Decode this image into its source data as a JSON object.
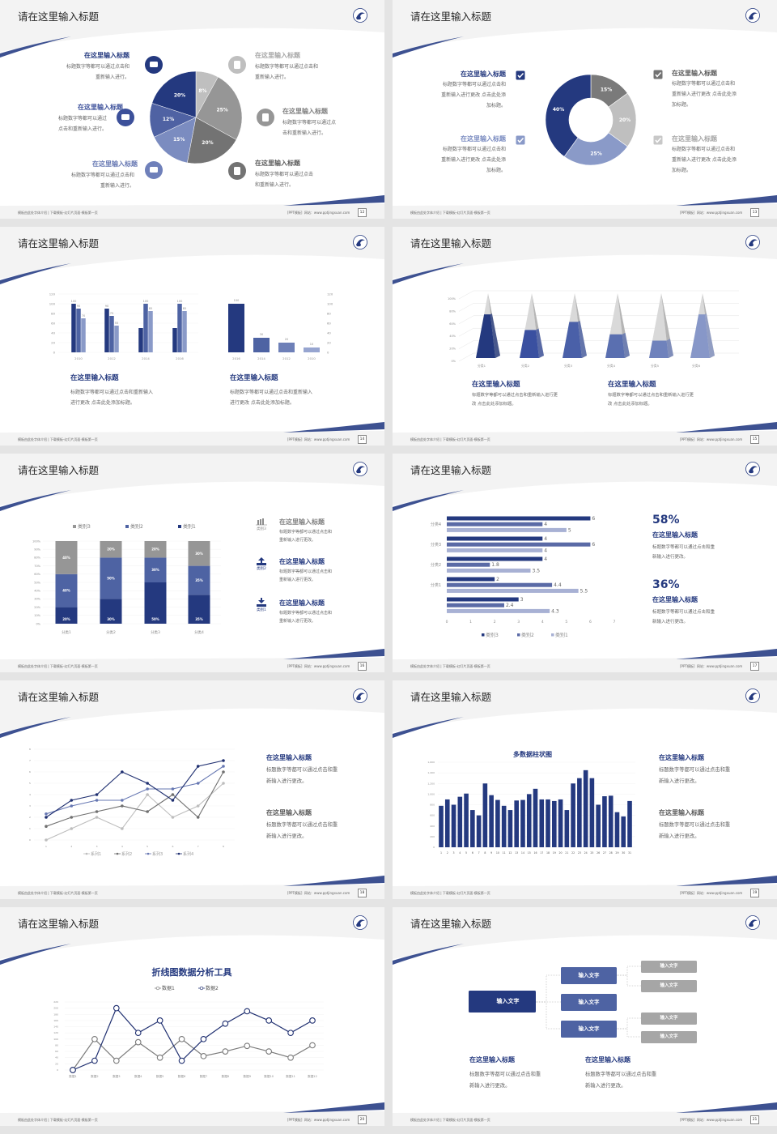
{
  "slide_title": "请在这里输入标题",
  "heading": "在这里输入标题",
  "footer": {
    "left": "模板由此处字体介绍 | 下载模板-幻灯片页面-模板第一页",
    "right": "[PPT模板]  网站：www.pptjingxuan.com"
  },
  "colors": {
    "navy": "#24397f",
    "blue": "#4e63a3",
    "light_blue": "#8a9ac8",
    "gray": "#969696",
    "light_gray": "#bfbfbf"
  },
  "slides": [
    {
      "page": "12",
      "left_items": [
        {
          "title": "在这里输入标题",
          "desc": "标题数字等都可以通过点击和\n重新输入进行。",
          "icon": "monitor-icon"
        },
        {
          "title": "在这里输入标题",
          "desc": "标题数字等都可以通过\n点击和重新输入进行。",
          "icon": "car-icon"
        },
        {
          "title": "在这里输入标题",
          "desc": "标题数字等都可以通过点击和\n重新输入进行。",
          "icon": "book-icon"
        }
      ],
      "right_items": [
        {
          "title": "在这里输入标题",
          "desc": "标题数字等都可以通过点击和\n重新输入进行。",
          "icon": "phone-icon"
        },
        {
          "title": "在这里输入标题",
          "desc": "标题数字等都可以通过点\n击和重新输入进行。",
          "icon": "binoculars-icon"
        },
        {
          "title": "在这里输入标题",
          "desc": "标题数字等都可以通过点击\n和重新输入进行。",
          "icon": "bicycle-icon"
        }
      ]
    },
    {
      "page": "13",
      "left_items": [
        {
          "title": "在这里输入标题",
          "desc": "标题数字等都可以通过点击和\n重新输入进行更改 点击此处添\n加标题。"
        },
        {
          "title": "在这里输入标题",
          "desc": "标题数字等都可以通过点击和\n重新输入进行更改 点击此处添\n加标题。"
        }
      ],
      "right_items": [
        {
          "title": "在这里输入标题",
          "desc": "标题数字等都可以通过点击和\n重新输入进行更改 点击此处添\n加标题。"
        },
        {
          "title": "在这里输入标题",
          "desc": "标题数字等都可以通过点击和\n重新输入进行更改 点击此处添\n加标题。"
        }
      ]
    },
    {
      "page": "14",
      "items": [
        {
          "title": "在这里输入标题",
          "desc": "标题数字等都可以通过点击和重新输入\n进行更改 点击此处添加标题。"
        },
        {
          "title": "在这里输入标题",
          "desc": "标题数字等都可以通过点击和重新输入\n进行更改 点击此处添加标题。"
        }
      ]
    },
    {
      "page": "15",
      "items": [
        {
          "title": "在这里输入标题",
          "desc": "标题数字等都可以通过点击和重新输入进行更\n改 点击此处添加标题。"
        },
        {
          "title": "在这里输入标题",
          "desc": "标题数字等都可以通过点击和重新输入进行更\n改 点击此处添加标题。"
        }
      ]
    },
    {
      "page": "16",
      "items": [
        {
          "label": "类别3",
          "icon": "bar-chart-icon",
          "title": "在这里输入标题",
          "desc": "标题数字等都可以通过点击和\n重新输入进行更改。"
        },
        {
          "label": "类别2",
          "icon": "upload-icon",
          "title": "在这里输入标题",
          "desc": "标题数字等都可以通过点击和\n重新输入进行更改。"
        },
        {
          "label": "类别1",
          "icon": "download-icon",
          "title": "在这里输入标题",
          "desc": "标题数字等都可以通过点击和\n重新输入进行更改。"
        }
      ]
    },
    {
      "page": "17",
      "items": [
        {
          "stat": "58%",
          "title": "在这里输入标题",
          "desc": "标题数字等都可以通过点击和重\n新输入进行更改。"
        },
        {
          "stat": "36%",
          "title": "在这里输入标题",
          "desc": "标题数字等都可以通过点击和重\n新输入进行更改。"
        }
      ]
    },
    {
      "page": "18",
      "items": [
        {
          "title": "在这里输入标题",
          "desc": "标题数字等都可以通过点击和重\n新输入进行更改。"
        },
        {
          "title": "在这里输入标题",
          "desc": "标题数字等都可以通过点击和重\n新输入进行更改。"
        }
      ]
    },
    {
      "page": "19",
      "items": [
        {
          "title": "在这里输入标题",
          "desc": "标题数字等都可以通过点击和重\n新输入进行更改。"
        },
        {
          "title": "在这里输入标题",
          "desc": "标题数字等都可以通过点击和重\n新输入进行更改。"
        }
      ]
    },
    {
      "page": "20"
    },
    {
      "page": "21",
      "flow": {
        "root": "输入文字",
        "middle": [
          "输入文字",
          "输入文字",
          "输入文字"
        ],
        "leaves": [
          "输入文字",
          "输入文字",
          "输入文字",
          "输入文字"
        ]
      },
      "items": [
        {
          "title": "在这里输入标题",
          "desc": "标题数字等都可以通过点击和重\n新输入进行更改。"
        },
        {
          "title": "在这里输入标题",
          "desc": "标题数字等都可以通过点击和重\n新输入进行更改。"
        }
      ]
    }
  ],
  "chart_data": [
    {
      "slide": 1,
      "type": "pie",
      "values": [
        8,
        25,
        20,
        15,
        12,
        20
      ],
      "labels": [
        "8%",
        "25%",
        "20%",
        "15%",
        "12%",
        "20%"
      ],
      "colors": [
        "#bfbfbf",
        "#969696",
        "#737373",
        "#7b8cc0",
        "#4f62a3",
        "#24397f"
      ]
    },
    {
      "slide": 2,
      "type": "pie",
      "donut": true,
      "values": [
        15,
        20,
        25,
        40
      ],
      "labels": [
        "15%",
        "20%",
        "25%",
        "40%"
      ],
      "colors": [
        "#7a7a7a",
        "#bfbfbf",
        "#8a9ac8",
        "#24397f"
      ]
    },
    {
      "slide": 3,
      "type": "bar",
      "categories": [
        "2010",
        "2012",
        "2014",
        "2016"
      ],
      "ylim": [
        0,
        120
      ],
      "yticks": [
        "0",
        "20",
        "40",
        "60",
        "80",
        "100",
        "120"
      ],
      "series": [
        {
          "values": [
            100,
            90,
            50,
            50
          ],
          "data_labels": [
            "100",
            "90",
            "",
            ""
          ],
          "color": "#24397f"
        },
        {
          "values": [
            90,
            75,
            100,
            100
          ],
          "data_labels": [
            "90",
            "75",
            "100",
            "100"
          ],
          "color": "#4e63a3"
        },
        {
          "values": [
            70,
            55,
            85,
            85
          ],
          "data_labels": [
            "70",
            "55",
            "85",
            "85"
          ],
          "color": "#8a9ac8"
        }
      ]
    },
    {
      "slide": 3,
      "type": "bar",
      "categories": [
        "2016",
        "2014",
        "2012",
        "2010"
      ],
      "ylim": [
        0,
        120
      ],
      "yticks": [
        "0",
        "20",
        "40",
        "60",
        "80",
        "100",
        "120"
      ],
      "values": [
        100,
        30,
        20,
        10
      ],
      "data_labels": [
        "100",
        "30",
        "20",
        "10"
      ],
      "colors": [
        "#24397f",
        "#4e63a3",
        "#6e80b8",
        "#97a5d0"
      ]
    },
    {
      "slide": 4,
      "type": "bar",
      "style": "3d-pyramid",
      "categories": [
        "分类1",
        "分类2",
        "分类3",
        "分类4",
        "分类5",
        "分类6"
      ],
      "ylim": [
        0,
        100
      ],
      "yticks": [
        "0%",
        "20%",
        "40%",
        "60%",
        "80%",
        "100%"
      ],
      "values": [
        70,
        45,
        58,
        38,
        28,
        70
      ],
      "colors": [
        "#24397f",
        "#3a50a0",
        "#4a60a8",
        "#5a6fb0",
        "#6f82bc",
        "#8797c8"
      ]
    },
    {
      "slide": 5,
      "type": "bar",
      "stacked": true,
      "categories": [
        "分类1",
        "分类2",
        "分类3",
        "分类4"
      ],
      "ylim": [
        0,
        100
      ],
      "yticks": [
        "0%",
        "10%",
        "20%",
        "30%",
        "40%",
        "50%",
        "60%",
        "70%",
        "80%",
        "90%",
        "100%"
      ],
      "legend": "top",
      "series": [
        {
          "name": "类别1",
          "values": [
            20,
            30,
            50,
            35
          ],
          "labels": [
            "20%",
            "30%",
            "50%",
            "35%"
          ],
          "color": "#24397f"
        },
        {
          "name": "类别2",
          "values": [
            40,
            50,
            30,
            35
          ],
          "labels": [
            "40%",
            "50%",
            "30%",
            "35%"
          ],
          "color": "#4e63a3"
        },
        {
          "name": "类别3",
          "values": [
            40,
            20,
            20,
            30
          ],
          "labels": [
            "40%",
            "20%",
            "20%",
            "30%"
          ],
          "color": "#969696"
        }
      ]
    },
    {
      "slide": 6,
      "type": "bar",
      "orientation": "horizontal",
      "categories": [
        "分类4",
        "分类3",
        "分类2",
        "分类1",
        ""
      ],
      "xlim": [
        0,
        7
      ],
      "xticks": [
        "0",
        "1",
        "2",
        "3",
        "4",
        "5",
        "6",
        "7"
      ],
      "legend": "bottom",
      "series": [
        {
          "name": "类别3",
          "values": [
            6,
            4,
            4,
            2,
            3
          ],
          "color": "#24397f"
        },
        {
          "name": "类别2",
          "values": [
            4,
            6,
            1.8,
            4.4,
            2.4
          ],
          "color": "#5a6aa6"
        },
        {
          "name": "类别1",
          "values": [
            5,
            4,
            3.5,
            5.5,
            4.3
          ],
          "color": "#a8b1d4"
        }
      ]
    },
    {
      "slide": 7,
      "type": "line",
      "x": [
        "1",
        "2",
        "3",
        "4",
        "5",
        "6",
        "7",
        "8"
      ],
      "ylim": [
        0,
        8
      ],
      "yticks": [
        "0",
        "1",
        "2",
        "3",
        "4",
        "5",
        "6",
        "7",
        "8"
      ],
      "legend": "bottom",
      "series": [
        {
          "name": "系列1",
          "values": [
            0,
            1,
            2,
            1,
            4,
            2,
            3,
            5
          ],
          "color": "#bdbdbd"
        },
        {
          "name": "系列2",
          "values": [
            1.2,
            2,
            2.5,
            3,
            2.5,
            4,
            2,
            6
          ],
          "color": "#707070"
        },
        {
          "name": "系列3",
          "values": [
            2.3,
            3,
            3.5,
            3.5,
            4.5,
            4.5,
            5,
            6.5
          ],
          "color": "#6677b2"
        },
        {
          "name": "系列4",
          "values": [
            2,
            3.5,
            4,
            6,
            5,
            3.5,
            6.5,
            7
          ],
          "color": "#1f2f70"
        }
      ]
    },
    {
      "slide": 8,
      "type": "bar",
      "title": "多数据柱状图",
      "ylim": [
        0,
        1600
      ],
      "yticks": [
        "0",
        "200",
        "400",
        "600",
        "800",
        "1,000",
        "1,200",
        "1,400",
        "1,600"
      ],
      "categories": [
        "1",
        "2",
        "3",
        "4",
        "5",
        "6",
        "7",
        "8",
        "9",
        "10",
        "11",
        "12",
        "13",
        "14",
        "15",
        "16",
        "17",
        "18",
        "19",
        "20",
        "21",
        "22",
        "23",
        "24",
        "25",
        "26",
        "27",
        "28",
        "29",
        "30",
        "31"
      ],
      "values": [
        780,
        900,
        800,
        950,
        1010,
        700,
        600,
        1200,
        980,
        890,
        780,
        700,
        880,
        890,
        1000,
        1100,
        900,
        900,
        870,
        900,
        700,
        1200,
        1300,
        1450,
        1300,
        800,
        960,
        970,
        660,
        580,
        870
      ],
      "color": "#24397f"
    },
    {
      "slide": 9,
      "type": "line",
      "title": "折线图数据分析工具",
      "legend": "top",
      "x": [
        "数据1",
        "数据2",
        "数据3",
        "数据4",
        "数据5",
        "数据6",
        "数据7",
        "数据8",
        "数据9",
        "数据10",
        "数据11",
        "数据12"
      ],
      "ylim": [
        0,
        220
      ],
      "yticks": [
        "0",
        "20",
        "40",
        "60",
        "80",
        "100",
        "120",
        "140",
        "160",
        "180",
        "200",
        "220"
      ],
      "series": [
        {
          "name": "数据1",
          "values": [
            0,
            100,
            30,
            90,
            40,
            100,
            45,
            60,
            78,
            60,
            40,
            80
          ],
          "color": "#7a7a7a"
        },
        {
          "name": "数据2",
          "values": [
            0,
            30,
            200,
            120,
            160,
            30,
            100,
            150,
            190,
            160,
            120,
            160
          ],
          "color": "#1f2f70"
        }
      ]
    }
  ]
}
